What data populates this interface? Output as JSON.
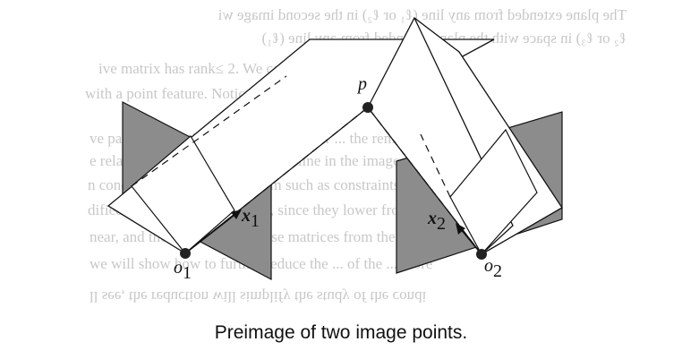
{
  "caption": "Preimage of two image points.",
  "labels": {
    "p": "p",
    "o1_base": "o",
    "o1_sub": "1",
    "x1_base": "x",
    "x1_sub": "1",
    "x2_base": "x",
    "x2_sub": "2",
    "o2_base": "o",
    "o2_sub": "2"
  },
  "background_text": [
    "The plane extended from any line (ℓ₁ or ℓ₂) in the second image wi",
    "ℓ₂ or ℓ₃) in space with the plane extended from any line (ℓ₁)",
    "ive matrix has rank≤ 2. We call the multiple",
    "with a point feature. Notice that p involves from the im",
    "ve pattern reduction, (ℓ₁, ℓ₂) and (ℓ₃) or ... the remaining",
    "e relationship of the point and the line in the image plane",
    "n conditions of the current form such as constraints",
    "dified to reduce and rationally, since they lower from",
    "near, and the derivation of these matrices from the follo",
    "we will show how to further reduce the ... of the ... more",
    "ll see, the reduction will simplify the study of the condi"
  ],
  "colors": {
    "plane_fill": "#8c8c8c",
    "line": "#111111",
    "ghost_text": "#9a9a9a"
  }
}
